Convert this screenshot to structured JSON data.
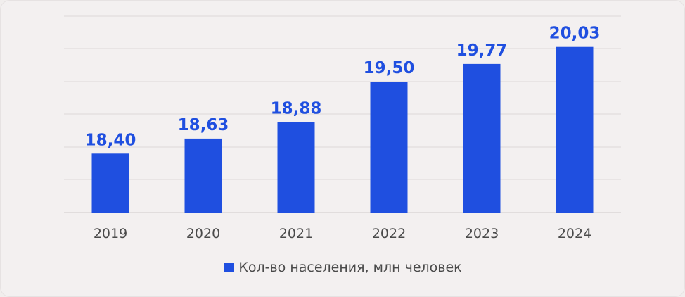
{
  "chart_data": {
    "type": "bar",
    "categories": [
      "2019",
      "2020",
      "2021",
      "2022",
      "2023",
      "2024"
    ],
    "series": [
      {
        "name": "Кол-во населения, млн человек",
        "values": [
          18.4,
          18.63,
          18.88,
          19.5,
          19.77,
          20.03
        ]
      }
    ],
    "value_labels": [
      "18,40",
      "18,63",
      "18,88",
      "19,50",
      "19,77",
      "20,03"
    ],
    "bar_color": "#1f4fe0",
    "label_color": "#1f4fe0",
    "grid": true,
    "legend_position": "bottom",
    "y_axis_visible": false,
    "ylim": [
      17.5,
      20.5
    ]
  },
  "legend": {
    "label": "Кол-во населения, млн человек"
  }
}
